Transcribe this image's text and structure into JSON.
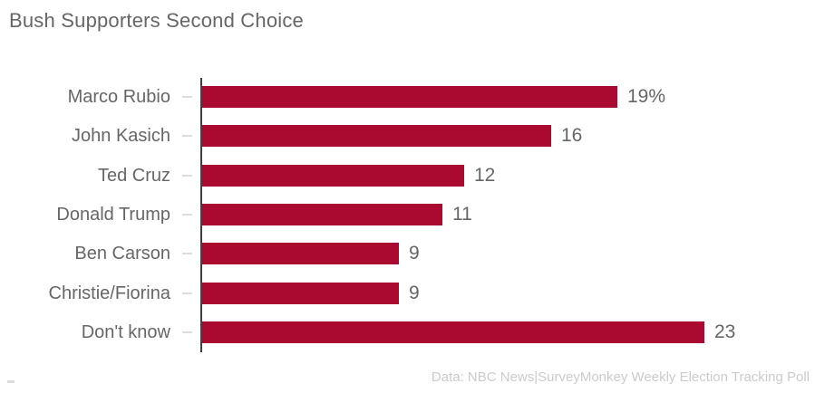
{
  "chart_data": {
    "type": "bar",
    "orientation": "horizontal",
    "title": "Bush Supporters Second Choice",
    "categories": [
      "Marco Rubio",
      "John Kasich",
      "Ted Cruz",
      "Donald Trump",
      "Ben Carson",
      "Christie/Fiorina",
      "Don't know"
    ],
    "values": [
      19,
      16,
      12,
      11,
      9,
      9,
      23
    ],
    "value_labels": [
      "19%",
      "16",
      "12",
      "11",
      "9",
      "9",
      "23"
    ],
    "xlim": [
      0,
      25
    ],
    "grid": false,
    "legend": false,
    "bar_color": "#AA0A2F"
  },
  "footer": {
    "source": "Data: NBC News|SurveyMonkey Weekly Election Tracking Poll"
  },
  "colors": {
    "bar": "#AA0A2F",
    "title_text": "#666666",
    "label_text": "#666666",
    "value_text": "#666666",
    "footer_text": "#cbcbcb",
    "axis_line": "#404040",
    "tick": "#dddddd"
  }
}
